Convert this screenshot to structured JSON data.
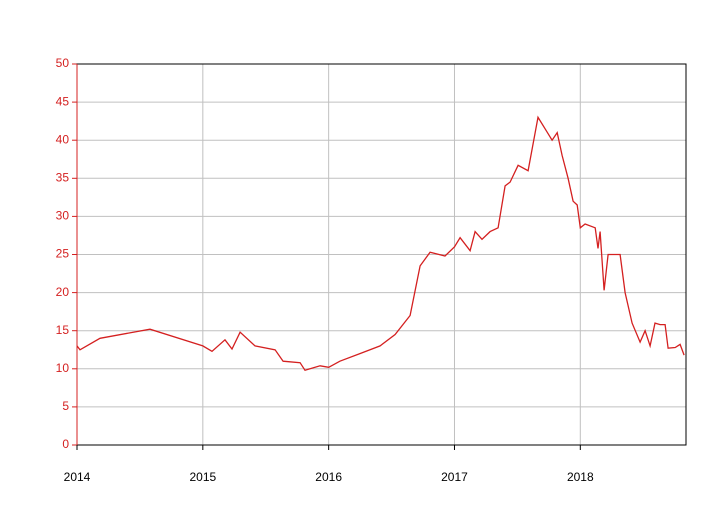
{
  "chart_data": {
    "type": "line",
    "x": [
      2014.0,
      2014.024,
      2014.183,
      2014.58,
      2015.0,
      2015.073,
      2015.176,
      2015.232,
      2015.296,
      2015.415,
      2015.574,
      2015.638,
      2015.773,
      2015.812,
      2015.932,
      2016.0,
      2016.089,
      2016.248,
      2016.409,
      2016.528,
      2016.647,
      2016.727,
      2016.806,
      2016.925,
      2017.0,
      2017.045,
      2017.124,
      2017.164,
      2017.219,
      2017.283,
      2017.347,
      2017.402,
      2017.442,
      2017.506,
      2017.585,
      2017.664,
      2017.72,
      2017.776,
      2017.816,
      2017.855,
      2017.903,
      2017.943,
      2017.975,
      2018.0,
      2018.038,
      2018.118,
      2018.141,
      2018.157,
      2018.189,
      2018.221,
      2018.316,
      2018.356,
      2018.412,
      2018.475,
      2018.515,
      2018.555,
      2018.594,
      2018.634,
      2018.674,
      2018.698,
      2018.754,
      2018.793,
      2018.825
    ],
    "series": [
      {
        "color": "#d42020",
        "values": [
          13,
          12.5,
          14,
          15.2,
          13,
          12.3,
          13.8,
          12.6,
          14.8,
          13,
          12.5,
          11,
          10.8,
          9.8,
          10.4,
          10.2,
          11,
          12,
          13,
          14.5,
          17,
          23.5,
          25.3,
          24.8,
          26,
          27.2,
          25.5,
          28,
          27,
          28,
          28.5,
          34,
          34.5,
          36.7,
          36,
          43,
          41.5,
          40,
          41,
          38,
          35,
          32,
          31.5,
          28.5,
          29,
          28.5,
          25.8,
          28,
          20.3,
          25,
          25,
          20,
          16,
          13.5,
          15,
          13,
          16,
          15.8,
          15.8,
          12.7,
          12.8,
          13.2,
          11.8
        ]
      }
    ],
    "xlim": [
      2014,
      2018.84
    ],
    "xticks": [
      2014,
      2015,
      2016,
      2017,
      2018
    ],
    "ylim": [
      0,
      50
    ],
    "yticks": [
      0,
      5,
      10,
      15,
      20,
      25,
      30,
      35,
      40,
      45,
      50
    ],
    "grid": true
  }
}
